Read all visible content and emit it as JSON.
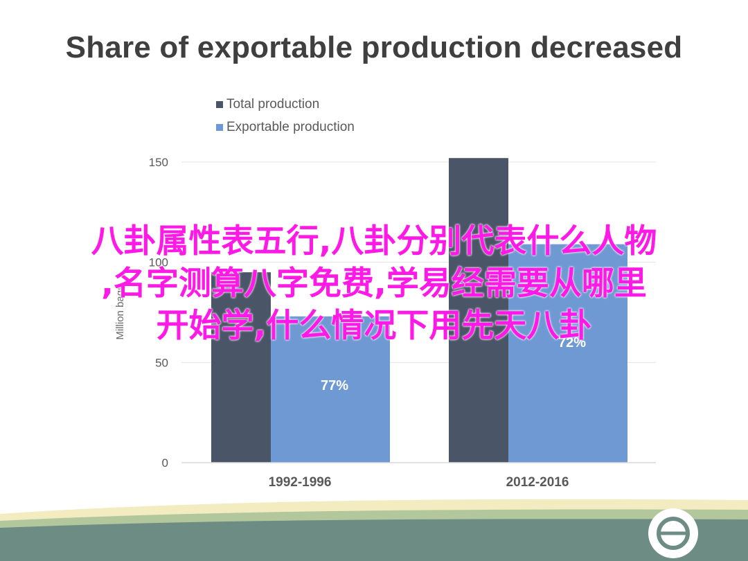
{
  "slide": {
    "title": "Share of exportable production decreased"
  },
  "chart_data": {
    "type": "bar",
    "categories": [
      "1992-1996",
      "2012-2016"
    ],
    "series": [
      {
        "name": "Total production",
        "values": [
          95,
          152
        ],
        "color": "#4a5567"
      },
      {
        "name": "Exportable production",
        "values": [
          73,
          109
        ],
        "color": "#6f99d2"
      }
    ],
    "data_labels": [
      "77%",
      "72%"
    ],
    "ylabel": "Million bags",
    "yticks": [
      0,
      50,
      100,
      150
    ],
    "ylim": [
      0,
      150
    ],
    "grid": true,
    "legend_position": "top-left"
  },
  "overlay": {
    "lines": [
      "八卦属性表五行,八卦分别代表什么人物",
      ",名字测算八字免费,学易经需要从哪里",
      "开始学,什么情况下用先天八卦"
    ],
    "color": "#ff19e6"
  },
  "footer": {
    "wave_colors": [
      "#f2ecc0",
      "#b3c79d",
      "#6d8d84"
    ],
    "logo_icon": "theta-circle-icon"
  }
}
